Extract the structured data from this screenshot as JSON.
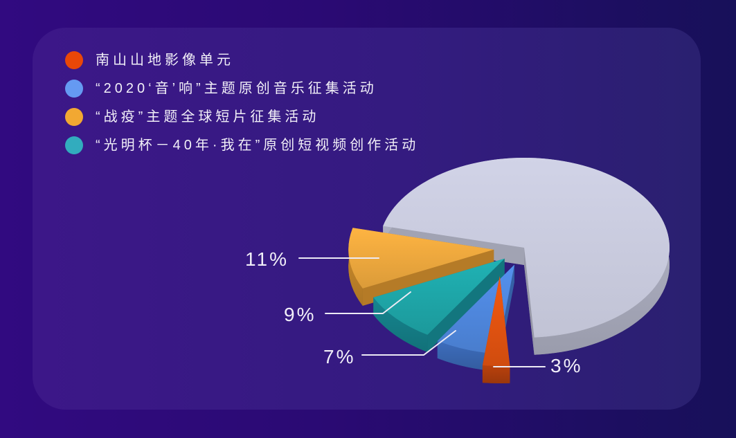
{
  "page": {
    "background_gradient": [
      "#310A80",
      "#171059"
    ],
    "card_gradient": [
      "#3C1788",
      "#2A2070"
    ]
  },
  "legend": {
    "items": [
      {
        "label": "南山山地影像单元",
        "dot_color": "#E94708"
      },
      {
        "label": "“2020‘音’响”主题原创音乐征集活动",
        "dot_color": "#659AF2"
      },
      {
        "label": "“战疫”主题全球短片征集活动",
        "dot_color": "#F2A832"
      },
      {
        "label": "“光明杯－40年·我在”原创短视频创作活动",
        "dot_color": "#32ACBE"
      }
    ]
  },
  "chart_data": {
    "type": "pie",
    "style": "3d-exploded",
    "unit": "percent",
    "legend_position": "top-left",
    "slices": [
      {
        "label": "“战疫”主题全球短片征集活动",
        "value": 11,
        "display": "11%",
        "top_color": "#EBA73D",
        "side_color": "#C5862A"
      },
      {
        "label": "“光明杯－40年·我在”原创短视频创作活动",
        "value": 9,
        "display": "9%",
        "top_color": "#1EA5A7",
        "side_color": "#158089"
      },
      {
        "label": "“2020‘音’响”主题原创音乐征集活动",
        "value": 7,
        "display": "7%",
        "top_color": "#4E86DC",
        "side_color": "#3A68B4"
      },
      {
        "label": "南山山地影像单元",
        "value": 3,
        "display": "3%",
        "top_color": "#E05210",
        "side_color": "#B03E0C"
      },
      {
        "label": "",
        "value": 70,
        "display": "",
        "top_color": "#C9CBDE",
        "side_color": "#AFB1C3"
      }
    ]
  }
}
